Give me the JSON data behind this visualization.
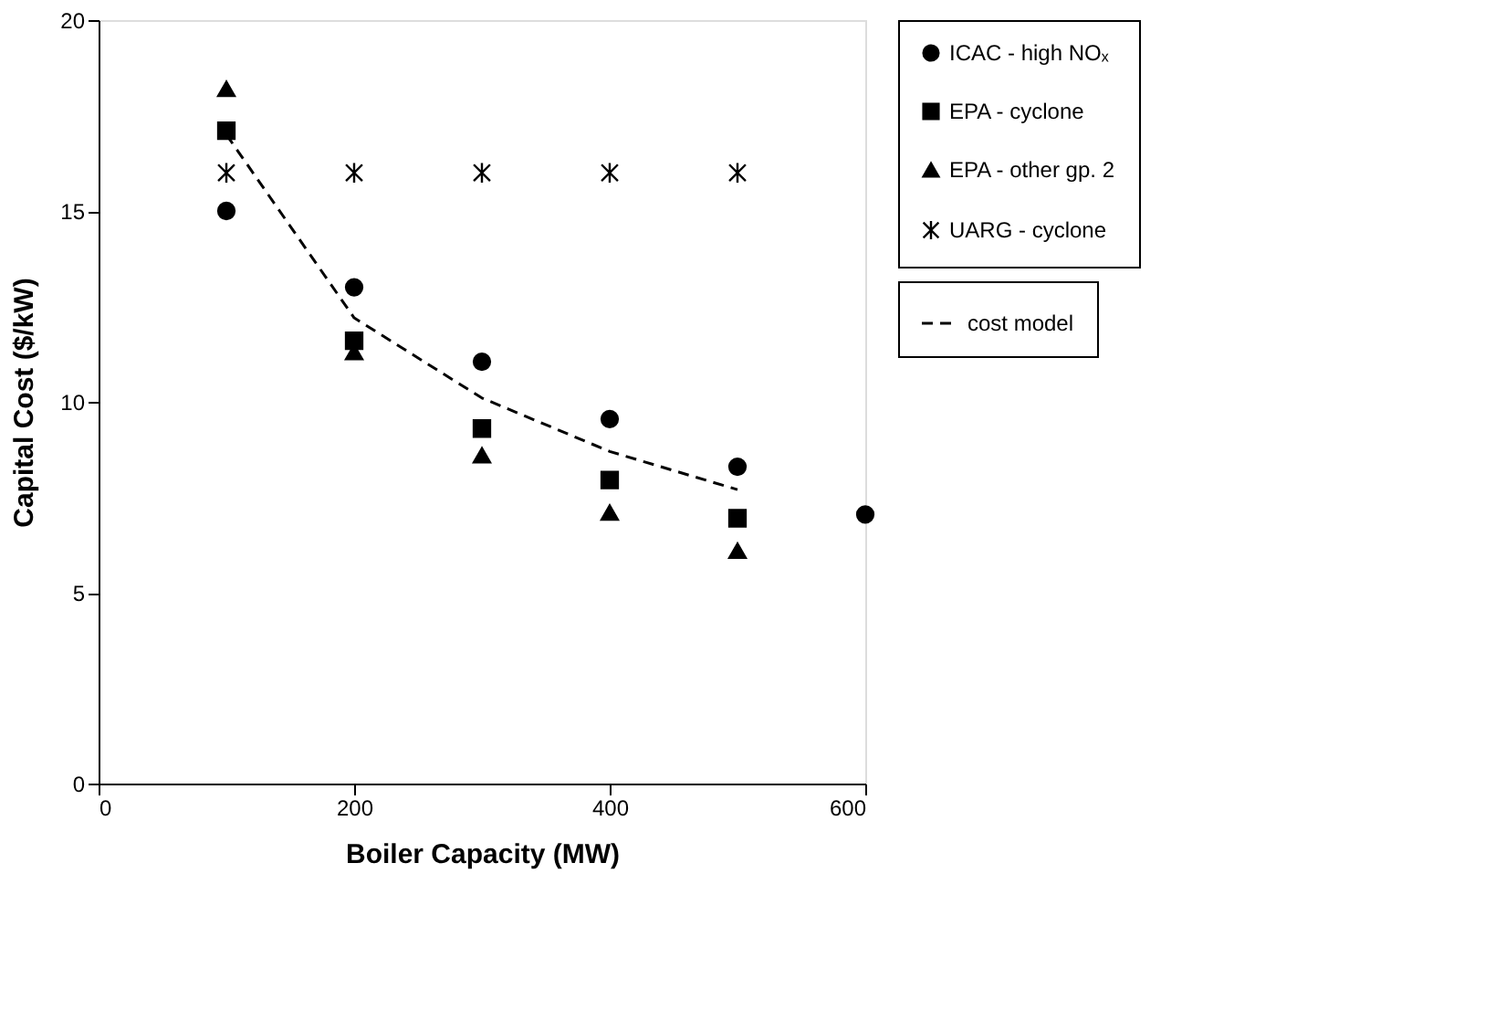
{
  "chart_data": {
    "type": "scatter",
    "xlabel": "Boiler Capacity (MW)",
    "ylabel": "Capital Cost ($/kW)",
    "xlim": [
      0,
      600
    ],
    "xticks": [
      0,
      200,
      400,
      600
    ],
    "ylim": [
      0,
      20
    ],
    "yticks": [
      0,
      5,
      10,
      15,
      20
    ],
    "grid": false,
    "legend": "right",
    "series": [
      {
        "name": "ICAC - high NOₓ",
        "color": "#000000",
        "marker": "circle",
        "x": [
          100,
          200,
          300,
          400,
          500,
          600
        ],
        "values": [
          15.0,
          13.0,
          11.05,
          9.55,
          8.3,
          7.05
        ]
      },
      {
        "name": "EPA - cyclone",
        "color": "#000000",
        "marker": "square",
        "x": [
          100,
          200,
          300,
          400,
          500
        ],
        "values": [
          17.1,
          11.6,
          9.3,
          7.95,
          6.95
        ]
      },
      {
        "name": "EPA - other gp. 2",
        "color": "#000000",
        "marker": "triangle",
        "x": [
          100,
          200,
          300,
          400,
          500
        ],
        "values": [
          18.2,
          11.3,
          8.6,
          7.1,
          6.1
        ]
      },
      {
        "name": "UARG - cyclone",
        "color": "#000000",
        "marker": "cross",
        "x": [
          100,
          200,
          300,
          400,
          500
        ],
        "values": [
          16,
          16,
          16,
          16,
          16
        ]
      },
      {
        "name": "cost model",
        "type": "line",
        "color": "#000000",
        "marker": "none",
        "line_style": "dashed",
        "x": [
          100,
          200,
          300,
          400,
          500
        ],
        "values": [
          17.0,
          12.2,
          10.1,
          8.7,
          7.7
        ]
      }
    ]
  }
}
